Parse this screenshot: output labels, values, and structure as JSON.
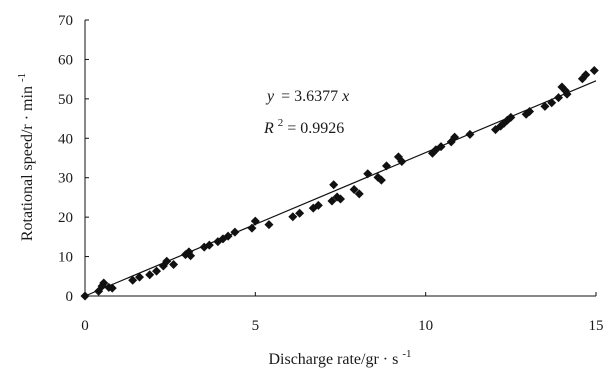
{
  "chart_data": {
    "type": "scatter",
    "xlabel_main": "Discharge rate/gr",
    "xlabel_dot": "·",
    "xlabel_unit": "s",
    "xlabel_exp": "-1",
    "ylabel_main": "Rotational speed/r",
    "ylabel_dot": "·",
    "ylabel_unit": "min",
    "ylabel_exp": "-1",
    "xlim": [
      0,
      15
    ],
    "ylim": [
      0,
      70
    ],
    "xticks": [
      0,
      5,
      10,
      15
    ],
    "yticks": [
      0,
      10,
      20,
      30,
      40,
      50,
      60,
      70
    ],
    "grid": false,
    "equation": {
      "y": "y",
      "eq1": "= 3.6377",
      "x": "x",
      "r": "R",
      "sup": "2",
      "eq2": "= 0.9926"
    },
    "trendline": {
      "slope": 3.6377,
      "intercept": 0
    },
    "series": [
      {
        "marker": "diamond",
        "color": "#111111",
        "points": [
          [
            0.0,
            0.0
          ],
          [
            0.4,
            1.2
          ],
          [
            0.5,
            2.5
          ],
          [
            0.55,
            3.3
          ],
          [
            0.7,
            2.2
          ],
          [
            0.8,
            2.0
          ],
          [
            1.4,
            4.0
          ],
          [
            1.6,
            4.8
          ],
          [
            1.9,
            5.4
          ],
          [
            2.1,
            6.3
          ],
          [
            2.3,
            7.6
          ],
          [
            2.4,
            8.8
          ],
          [
            2.6,
            8.0
          ],
          [
            2.95,
            10.5
          ],
          [
            3.05,
            11.2
          ],
          [
            3.1,
            10.2
          ],
          [
            3.5,
            12.4
          ],
          [
            3.65,
            12.9
          ],
          [
            3.9,
            13.8
          ],
          [
            4.05,
            14.5
          ],
          [
            4.2,
            15.2
          ],
          [
            4.4,
            16.2
          ],
          [
            4.9,
            17.2
          ],
          [
            5.0,
            19.0
          ],
          [
            5.4,
            18.1
          ],
          [
            6.1,
            20.1
          ],
          [
            6.3,
            21.0
          ],
          [
            6.7,
            22.3
          ],
          [
            6.85,
            23.0
          ],
          [
            7.25,
            24.1
          ],
          [
            7.3,
            28.2
          ],
          [
            7.4,
            25.1
          ],
          [
            7.5,
            24.6
          ],
          [
            7.9,
            27.0
          ],
          [
            8.05,
            25.9
          ],
          [
            8.3,
            31.0
          ],
          [
            8.6,
            30.1
          ],
          [
            8.7,
            29.4
          ],
          [
            8.85,
            33.0
          ],
          [
            9.2,
            35.3
          ],
          [
            9.3,
            34.1
          ],
          [
            10.2,
            36.2
          ],
          [
            10.3,
            37.1
          ],
          [
            10.45,
            37.9
          ],
          [
            10.75,
            39.1
          ],
          [
            10.85,
            40.3
          ],
          [
            11.3,
            41.0
          ],
          [
            12.05,
            42.2
          ],
          [
            12.2,
            43.1
          ],
          [
            12.3,
            43.8
          ],
          [
            12.4,
            44.6
          ],
          [
            12.5,
            45.3
          ],
          [
            12.95,
            46.1
          ],
          [
            13.05,
            46.8
          ],
          [
            13.5,
            48.1
          ],
          [
            13.7,
            49.0
          ],
          [
            13.9,
            50.3
          ],
          [
            14.0,
            53.0
          ],
          [
            14.1,
            52.1
          ],
          [
            14.15,
            51.2
          ],
          [
            14.6,
            55.1
          ],
          [
            14.7,
            56.1
          ],
          [
            14.95,
            57.2
          ]
        ]
      }
    ]
  }
}
